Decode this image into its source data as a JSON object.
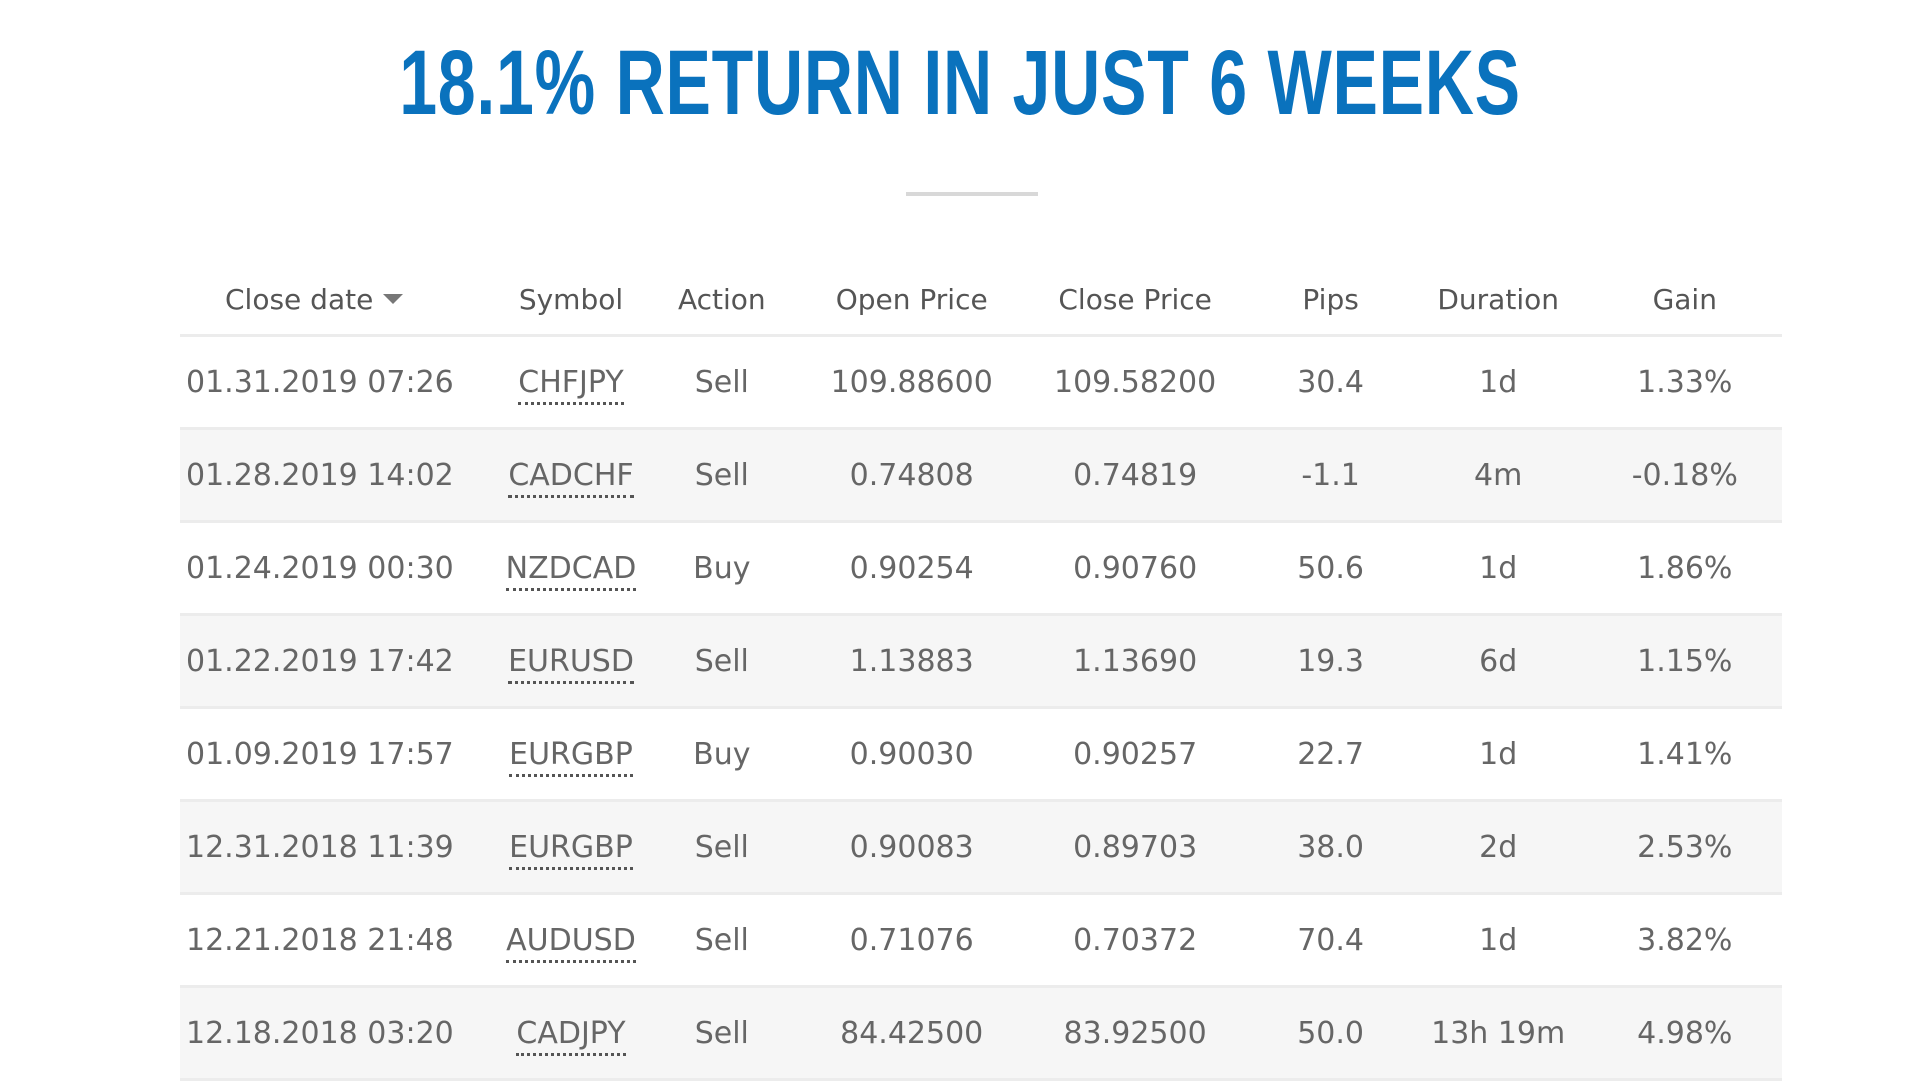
{
  "headline": "18.1% RETURN IN JUST 6 WEEKS",
  "colors": {
    "headline": "#0a72bd",
    "positive_pips": "#3aa642",
    "negative_pips": "#d83a3a",
    "text": "#666666",
    "zebra_row": "#f6f6f6"
  },
  "table": {
    "headers": {
      "close_date": "Close date",
      "symbol": "Symbol",
      "action": "Action",
      "open_price": "Open Price",
      "close_price": "Close Price",
      "pips": "Pips",
      "duration": "Duration",
      "gain": "Gain"
    },
    "sort_icon": "caret-down-icon",
    "rows": [
      {
        "close_date": "01.31.2019 07:26",
        "symbol": "CHFJPY",
        "action": "Sell",
        "open_price": "109.88600",
        "close_price": "109.58200",
        "pips": "30.4",
        "duration": "1d",
        "gain": "1.33%"
      },
      {
        "close_date": "01.28.2019 14:02",
        "symbol": "CADCHF",
        "action": "Sell",
        "open_price": "0.74808",
        "close_price": "0.74819",
        "pips": "-1.1",
        "duration": "4m",
        "gain": "-0.18%"
      },
      {
        "close_date": "01.24.2019 00:30",
        "symbol": "NZDCAD",
        "action": "Buy",
        "open_price": "0.90254",
        "close_price": "0.90760",
        "pips": "50.6",
        "duration": "1d",
        "gain": "1.86%"
      },
      {
        "close_date": "01.22.2019 17:42",
        "symbol": "EURUSD",
        "action": "Sell",
        "open_price": "1.13883",
        "close_price": "1.13690",
        "pips": "19.3",
        "duration": "6d",
        "gain": "1.15%"
      },
      {
        "close_date": "01.09.2019 17:57",
        "symbol": "EURGBP",
        "action": "Buy",
        "open_price": "0.90030",
        "close_price": "0.90257",
        "pips": "22.7",
        "duration": "1d",
        "gain": "1.41%"
      },
      {
        "close_date": "12.31.2018 11:39",
        "symbol": "EURGBP",
        "action": "Sell",
        "open_price": "0.90083",
        "close_price": "0.89703",
        "pips": "38.0",
        "duration": "2d",
        "gain": "2.53%"
      },
      {
        "close_date": "12.21.2018 21:48",
        "symbol": "AUDUSD",
        "action": "Sell",
        "open_price": "0.71076",
        "close_price": "0.70372",
        "pips": "70.4",
        "duration": "1d",
        "gain": "3.82%"
      },
      {
        "close_date": "12.18.2018 03:20",
        "symbol": "CADJPY",
        "action": "Sell",
        "open_price": "84.42500",
        "close_price": "83.92500",
        "pips": "50.0",
        "duration": "13h 19m",
        "gain": "4.98%"
      }
    ]
  }
}
